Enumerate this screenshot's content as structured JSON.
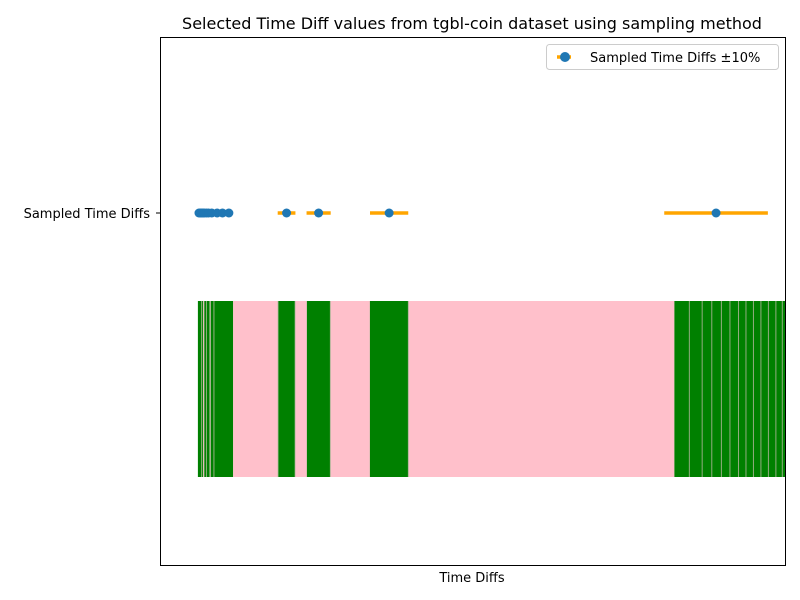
{
  "chart_data": {
    "type": "scatter",
    "title": "Selected Time Diff values from tgbl-coin dataset using sampling method",
    "xlabel": "Time Diffs",
    "ylabel": "",
    "y_tick_labels": [
      "Sampled Time Diffs"
    ],
    "x_ticks_visible": false,
    "xlim": [
      -3.5,
      55
    ],
    "legend": {
      "position": "top-right",
      "entries": [
        "Sampled Time Diffs ±10%"
      ]
    },
    "series": [
      {
        "name": "Sampled Time Diffs ±10%",
        "marker_color": "#1f77b4",
        "error_bar_color": "#ffa500",
        "relative_error": 0.1,
        "x": [
          0.1,
          0.2,
          0.3,
          0.4,
          0.5,
          0.6,
          0.8,
          1.0,
          1.3,
          1.8,
          2.3,
          2.9,
          8.3,
          11.3,
          17.9,
          48.5
        ]
      }
    ],
    "band": {
      "bar_color": "#008000",
      "gap_color": "#ffc0cb",
      "segments": [
        [
          0,
          0.5,
          "#008000"
        ],
        [
          0.5,
          0.6,
          "#ffc0cb"
        ],
        [
          0.6,
          1.1,
          "#008000"
        ],
        [
          1.1,
          1.2,
          "#ffc0cb"
        ],
        [
          1.2,
          1.6,
          "#008000"
        ],
        [
          1.6,
          3.3,
          "#008000"
        ],
        [
          3.3,
          7.5,
          "#ffc0cb"
        ],
        [
          7.5,
          9.1,
          "#008000"
        ],
        [
          9.1,
          10.2,
          "#ffc0cb"
        ],
        [
          10.2,
          12.4,
          "#008000"
        ],
        [
          12.4,
          16.1,
          "#ffc0cb"
        ],
        [
          16.1,
          19.7,
          "#008000"
        ],
        [
          19.7,
          44.6,
          "#ffc0cb"
        ],
        [
          44.6,
          55,
          "#008000"
        ]
      ],
      "light_lines": [
        0.35,
        0.8,
        1.15,
        1.5,
        7.5,
        9.1,
        12.4,
        19.7,
        46.0,
        47.2,
        48.1,
        49.0,
        49.8,
        50.6,
        51.3,
        52.0,
        52.7,
        53.4,
        54.1,
        54.7
      ]
    }
  }
}
